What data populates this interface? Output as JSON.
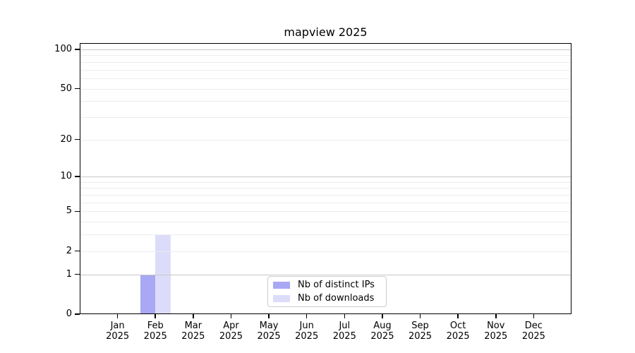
{
  "page": {
    "background": "#ffffff"
  },
  "chart_data": {
    "type": "bar",
    "title": "mapview 2025",
    "x": {
      "months": [
        "Jan",
        "Feb",
        "Mar",
        "Apr",
        "May",
        "Jun",
        "Jul",
        "Aug",
        "Sep",
        "Oct",
        "Nov",
        "Dec"
      ],
      "year": "2025"
    },
    "y_axis": {
      "scale": "log1p",
      "min": 0,
      "max": 100,
      "tick_values": [
        0,
        1,
        2,
        5,
        10,
        20,
        50,
        100
      ]
    },
    "grid": {
      "major_values": [
        1,
        10,
        100
      ],
      "minor_values": [
        2,
        3,
        4,
        5,
        6,
        7,
        8,
        9,
        20,
        30,
        40,
        50,
        60,
        70,
        80,
        90
      ],
      "major_color": "#c8c8c8",
      "minor_color": "#ededed"
    },
    "series": [
      {
        "name": "Nb of distinct IPs",
        "color": "#a8a8f5",
        "values": [
          0,
          1,
          0,
          0,
          0,
          0,
          0,
          0,
          0,
          0,
          0,
          0
        ]
      },
      {
        "name": "Nb of downloads",
        "color": "#dcdcfa",
        "values": [
          0,
          3,
          0,
          0,
          0,
          0,
          0,
          0,
          0,
          0,
          0,
          0
        ]
      }
    ],
    "legend": {
      "position": "inside-bottom-center",
      "border_color": "#cccccc",
      "background": "#ffffff"
    },
    "frame_color": "#000000",
    "text_color": "#000000"
  }
}
